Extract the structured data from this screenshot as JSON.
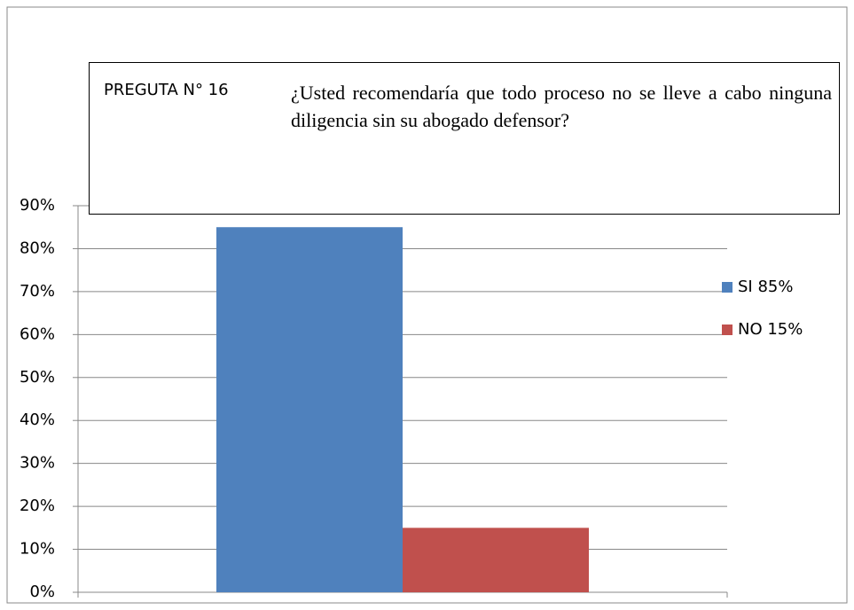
{
  "chart_data": {
    "type": "bar",
    "title": "PREGUTA N° 16",
    "subtitle": "¿Usted recomendaría que todo proceso no se lleve a cabo ninguna diligencia sin su abogado defensor?",
    "categories": [
      null
    ],
    "series": [
      {
        "name": "SI 85%",
        "color": "#4f81bd",
        "values": [
          85
        ]
      },
      {
        "name": "NO 15%",
        "color": "#c0504d",
        "values": [
          15
        ]
      }
    ],
    "ylim": [
      0,
      90
    ],
    "yticks": [
      {
        "value": 0,
        "label": "0%"
      },
      {
        "value": 10,
        "label": "10%"
      },
      {
        "value": 20,
        "label": "20%"
      },
      {
        "value": 30,
        "label": "30%"
      },
      {
        "value": 40,
        "label": "40%"
      },
      {
        "value": 50,
        "label": "50%"
      },
      {
        "value": 60,
        "label": "60%"
      },
      {
        "value": 70,
        "label": "70%"
      },
      {
        "value": 80,
        "label": "80%"
      },
      {
        "value": 90,
        "label": "90%"
      }
    ],
    "grid": true,
    "legend": "right"
  }
}
